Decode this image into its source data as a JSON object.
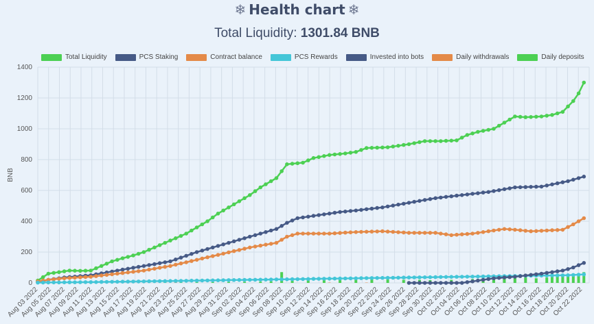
{
  "page": {
    "title": "Health chart",
    "title_icon": "snowflake-icon",
    "subtitle_prefix": "Total Liquidity: ",
    "subtitle_value": "1301.84 BNB"
  },
  "chart_data": {
    "type": "line",
    "ylabel": "BNB",
    "ylim": [
      0,
      1400
    ],
    "yticks": [
      0,
      200,
      400,
      600,
      800,
      1000,
      1200,
      1400
    ],
    "grid": true,
    "legend_position": "top",
    "x_tick_labels": [
      "Aug 03 2022",
      "Aug 05 2022",
      "Aug 07 2022",
      "Aug 09 2022",
      "Aug 11 2022",
      "Aug 13 2022",
      "Aug 15 2022",
      "Aug 17 2022",
      "Aug 19 2022",
      "Aug 21 2022",
      "Aug 23 2022",
      "Aug 25 2022",
      "Aug 27 2022",
      "Aug 29 2022",
      "Aug 31 2022",
      "Sep 02 2022",
      "Sep 04 2022",
      "Sep 06 2022",
      "Sep 08 2022",
      "Sep 10 2022",
      "Sep 12 2022",
      "Sep 14 2022",
      "Sep 16 2022",
      "Sep 18 2022",
      "Sep 20 2022",
      "Sep 22 2022",
      "Sep 24 2022",
      "Sep 26 2022",
      "Sep 28 2022",
      "Sep 30 2022",
      "Oct 02 2022",
      "Oct 04 2022",
      "Oct 06 2022",
      "Oct 08 2022",
      "Oct 10 2022",
      "Oct 12 2022",
      "Oct 14 2022",
      "Oct 16 2022",
      "Oct 18 2022",
      "Oct 20 2022",
      "Oct 22 2022"
    ],
    "series": [
      {
        "name": "Total Liquidity",
        "kind": "line",
        "color": "#4cd053",
        "points": [
          [
            0,
            15
          ],
          [
            2,
            60
          ],
          [
            4,
            70
          ],
          [
            6,
            80
          ],
          [
            8,
            78
          ],
          [
            10,
            80
          ],
          [
            12,
            110
          ],
          [
            14,
            140
          ],
          [
            16,
            160
          ],
          [
            18,
            178
          ],
          [
            20,
            200
          ],
          [
            22,
            230
          ],
          [
            24,
            260
          ],
          [
            26,
            290
          ],
          [
            28,
            320
          ],
          [
            30,
            360
          ],
          [
            32,
            400
          ],
          [
            34,
            450
          ],
          [
            36,
            490
          ],
          [
            38,
            530
          ],
          [
            40,
            570
          ],
          [
            42,
            620
          ],
          [
            44,
            660
          ],
          [
            45,
            680
          ],
          [
            47,
            770
          ],
          [
            50,
            780
          ],
          [
            52,
            810
          ],
          [
            55,
            830
          ],
          [
            58,
            840
          ],
          [
            60,
            850
          ],
          [
            62,
            875
          ],
          [
            66,
            880
          ],
          [
            70,
            900
          ],
          [
            73,
            920
          ],
          [
            76,
            920
          ],
          [
            79,
            925
          ],
          [
            81,
            960
          ],
          [
            83,
            980
          ],
          [
            86,
            1000
          ],
          [
            88,
            1040
          ],
          [
            90,
            1080
          ],
          [
            92,
            1075
          ],
          [
            95,
            1080
          ],
          [
            97,
            1090
          ],
          [
            99,
            1110
          ],
          [
            101,
            1180
          ],
          [
            102,
            1230
          ],
          [
            103,
            1300
          ]
        ]
      },
      {
        "name": "PCS Staking",
        "kind": "line",
        "color": "#465a86",
        "points": [
          [
            0,
            5
          ],
          [
            2,
            20
          ],
          [
            5,
            35
          ],
          [
            10,
            50
          ],
          [
            15,
            80
          ],
          [
            20,
            110
          ],
          [
            25,
            140
          ],
          [
            30,
            200
          ],
          [
            35,
            250
          ],
          [
            40,
            300
          ],
          [
            45,
            350
          ],
          [
            47,
            390
          ],
          [
            49,
            420
          ],
          [
            53,
            440
          ],
          [
            57,
            460
          ],
          [
            60,
            470
          ],
          [
            65,
            490
          ],
          [
            70,
            520
          ],
          [
            75,
            550
          ],
          [
            80,
            570
          ],
          [
            85,
            590
          ],
          [
            90,
            620
          ],
          [
            95,
            625
          ],
          [
            100,
            660
          ],
          [
            103,
            690
          ]
        ]
      },
      {
        "name": "Contract balance",
        "kind": "line",
        "color": "#e48a48",
        "points": [
          [
            0,
            10
          ],
          [
            2,
            20
          ],
          [
            5,
            30
          ],
          [
            10,
            40
          ],
          [
            15,
            60
          ],
          [
            20,
            80
          ],
          [
            25,
            110
          ],
          [
            30,
            150
          ],
          [
            35,
            190
          ],
          [
            40,
            230
          ],
          [
            45,
            260
          ],
          [
            47,
            300
          ],
          [
            49,
            320
          ],
          [
            55,
            320
          ],
          [
            60,
            330
          ],
          [
            65,
            335
          ],
          [
            70,
            325
          ],
          [
            75,
            325
          ],
          [
            78,
            310
          ],
          [
            82,
            320
          ],
          [
            86,
            340
          ],
          [
            88,
            350
          ],
          [
            90,
            345
          ],
          [
            93,
            335
          ],
          [
            96,
            340
          ],
          [
            99,
            345
          ],
          [
            101,
            380
          ],
          [
            103,
            420
          ]
        ]
      },
      {
        "name": "PCS Rewards",
        "kind": "line",
        "color": "#44c6d8",
        "points": [
          [
            0,
            2
          ],
          [
            10,
            5
          ],
          [
            20,
            10
          ],
          [
            30,
            15
          ],
          [
            40,
            20
          ],
          [
            50,
            25
          ],
          [
            60,
            30
          ],
          [
            70,
            35
          ],
          [
            80,
            40
          ],
          [
            90,
            45
          ],
          [
            100,
            50
          ],
          [
            103,
            55
          ]
        ]
      },
      {
        "name": "Invested into bots",
        "kind": "line",
        "color": "#465a86",
        "points": [
          [
            70,
            0
          ],
          [
            80,
            0
          ],
          [
            82,
            10
          ],
          [
            86,
            30
          ],
          [
            90,
            40
          ],
          [
            95,
            60
          ],
          [
            99,
            80
          ],
          [
            101,
            100
          ],
          [
            103,
            130
          ]
        ]
      },
      {
        "name": "Daily withdrawals",
        "kind": "bar",
        "color": "#e48a48",
        "points": [
          [
            1,
            3
          ],
          [
            9,
            2
          ],
          [
            17,
            2
          ],
          [
            26,
            3
          ],
          [
            36,
            2
          ],
          [
            46,
            2
          ],
          [
            55,
            2
          ],
          [
            62,
            2
          ],
          [
            72,
            3
          ],
          [
            82,
            3
          ],
          [
            90,
            2
          ],
          [
            98,
            3
          ]
        ]
      },
      {
        "name": "Daily deposits",
        "kind": "bar",
        "color": "#4cd053",
        "points": [
          [
            0,
            5
          ],
          [
            2,
            4
          ],
          [
            4,
            3
          ],
          [
            6,
            3
          ],
          [
            9,
            4
          ],
          [
            12,
            3
          ],
          [
            15,
            5
          ],
          [
            18,
            3
          ],
          [
            21,
            4
          ],
          [
            24,
            5
          ],
          [
            27,
            15
          ],
          [
            30,
            6
          ],
          [
            33,
            5
          ],
          [
            36,
            6
          ],
          [
            39,
            7
          ],
          [
            42,
            8
          ],
          [
            44,
            10
          ],
          [
            46,
            70
          ],
          [
            48,
            15
          ],
          [
            51,
            20
          ],
          [
            54,
            22
          ],
          [
            57,
            20
          ],
          [
            60,
            20
          ],
          [
            63,
            25
          ],
          [
            66,
            22
          ],
          [
            69,
            20
          ],
          [
            72,
            20
          ],
          [
            74,
            18
          ],
          [
            78,
            20
          ],
          [
            82,
            25
          ],
          [
            84,
            30
          ],
          [
            86,
            30
          ],
          [
            88,
            35
          ],
          [
            90,
            32
          ],
          [
            92,
            35
          ],
          [
            94,
            30
          ],
          [
            96,
            35
          ],
          [
            97,
            40
          ],
          [
            98,
            45
          ],
          [
            99,
            50
          ],
          [
            100,
            55
          ],
          [
            101,
            60
          ],
          [
            102,
            60
          ],
          [
            103,
            70
          ]
        ]
      }
    ]
  }
}
